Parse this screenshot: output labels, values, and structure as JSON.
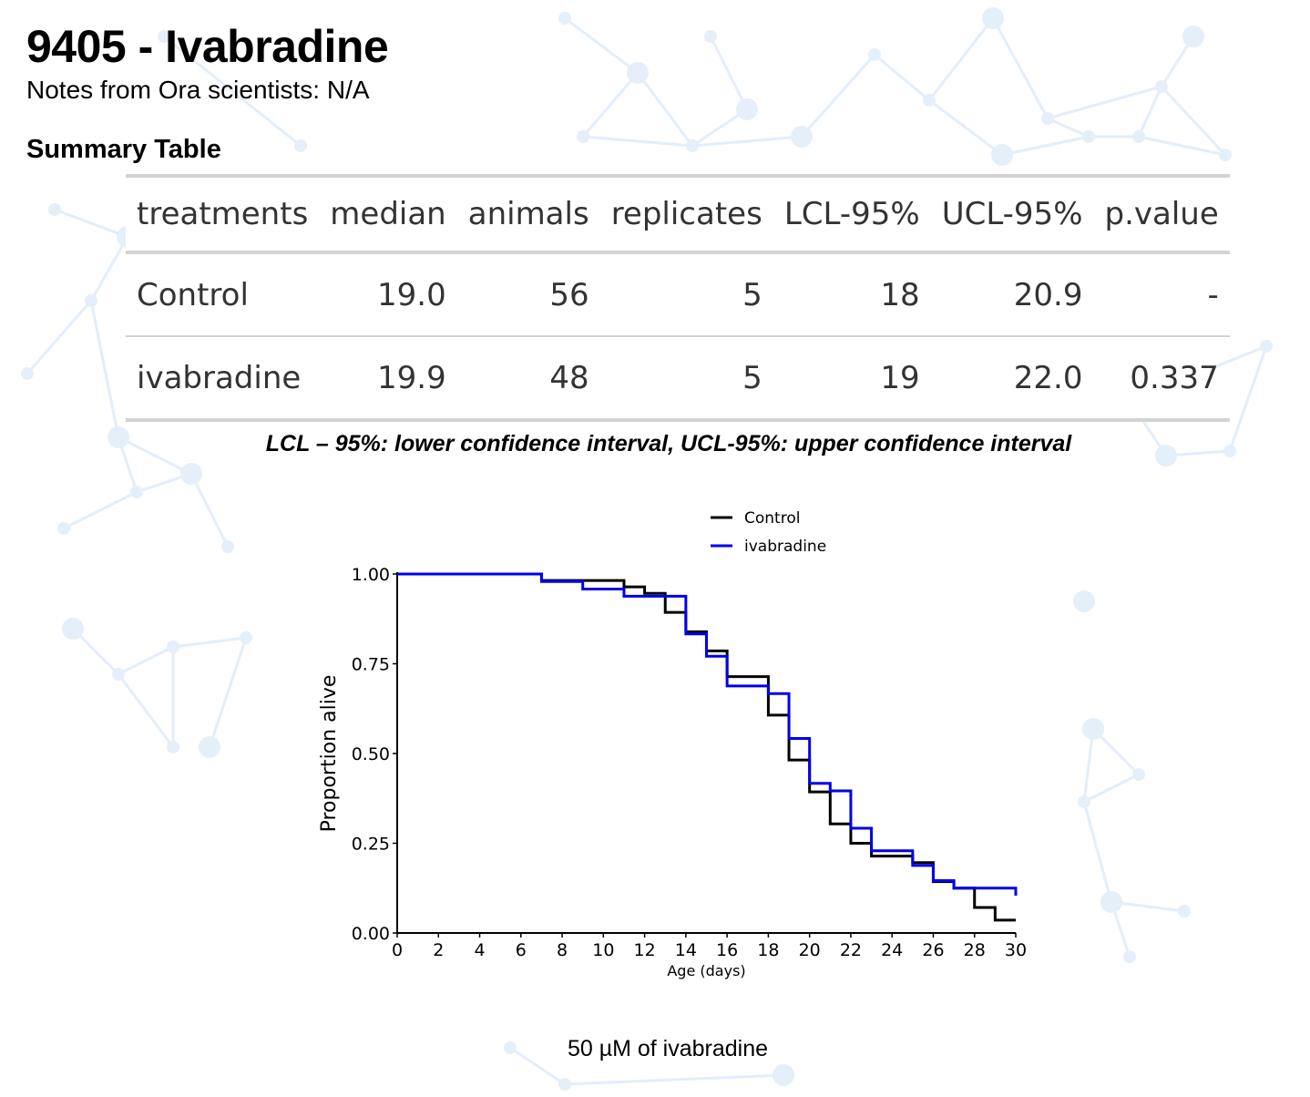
{
  "header": {
    "title": "9405 - Ivabradine",
    "notes": "Notes from Ora scientists: N/A",
    "section_title": "Summary Table"
  },
  "summary_table": {
    "columns": [
      "treatments",
      "median",
      "animals",
      "replicates",
      "LCL-95%",
      "UCL-95%",
      "p.value"
    ],
    "rows": [
      [
        "Control",
        "19.0",
        "56",
        "5",
        "18",
        "20.9",
        "-"
      ],
      [
        "ivabradine",
        "19.9",
        "48",
        "5",
        "19",
        "22.0",
        "0.337"
      ]
    ],
    "caption": "LCL – 95%: lower confidence interval, UCL-95%: upper confidence interval"
  },
  "footer": "50 µM of ivabradine",
  "chart_data": {
    "type": "line",
    "subtype": "step (Kaplan-Meier survival)",
    "title": "",
    "xlabel": "Age (days)",
    "ylabel": "Proportion alive",
    "xlim": [
      0,
      30
    ],
    "ylim": [
      0,
      1
    ],
    "x_ticks": [
      0,
      2,
      4,
      6,
      8,
      10,
      12,
      14,
      16,
      18,
      20,
      22,
      24,
      26,
      28,
      30
    ],
    "y_ticks": [
      0.0,
      0.25,
      0.5,
      0.75,
      1.0
    ],
    "y_tick_labels": [
      "0.00",
      "0.25",
      "0.50",
      "0.75",
      "1.00"
    ],
    "grid": false,
    "legend_position": "top-center",
    "series": [
      {
        "name": "Control",
        "color": "#000000",
        "x": [
          0,
          7,
          11,
          12,
          13,
          14,
          15,
          16,
          18,
          19,
          20,
          21,
          22,
          23,
          25,
          26,
          27,
          28,
          29,
          30
        ],
        "y": [
          1.0,
          0.982,
          0.964,
          0.946,
          0.893,
          0.839,
          0.786,
          0.714,
          0.607,
          0.482,
          0.393,
          0.304,
          0.25,
          0.214,
          0.196,
          0.143,
          0.125,
          0.071,
          0.036,
          0.036
        ]
      },
      {
        "name": "ivabradine",
        "color": "#0000ee",
        "x": [
          0,
          7,
          9,
          11,
          14,
          15,
          16,
          18,
          19,
          20,
          21,
          22,
          23,
          25,
          26,
          27,
          30
        ],
        "y": [
          1.0,
          0.979,
          0.958,
          0.938,
          0.833,
          0.771,
          0.688,
          0.667,
          0.542,
          0.417,
          0.396,
          0.292,
          0.229,
          0.188,
          0.146,
          0.125,
          0.104
        ]
      }
    ]
  }
}
